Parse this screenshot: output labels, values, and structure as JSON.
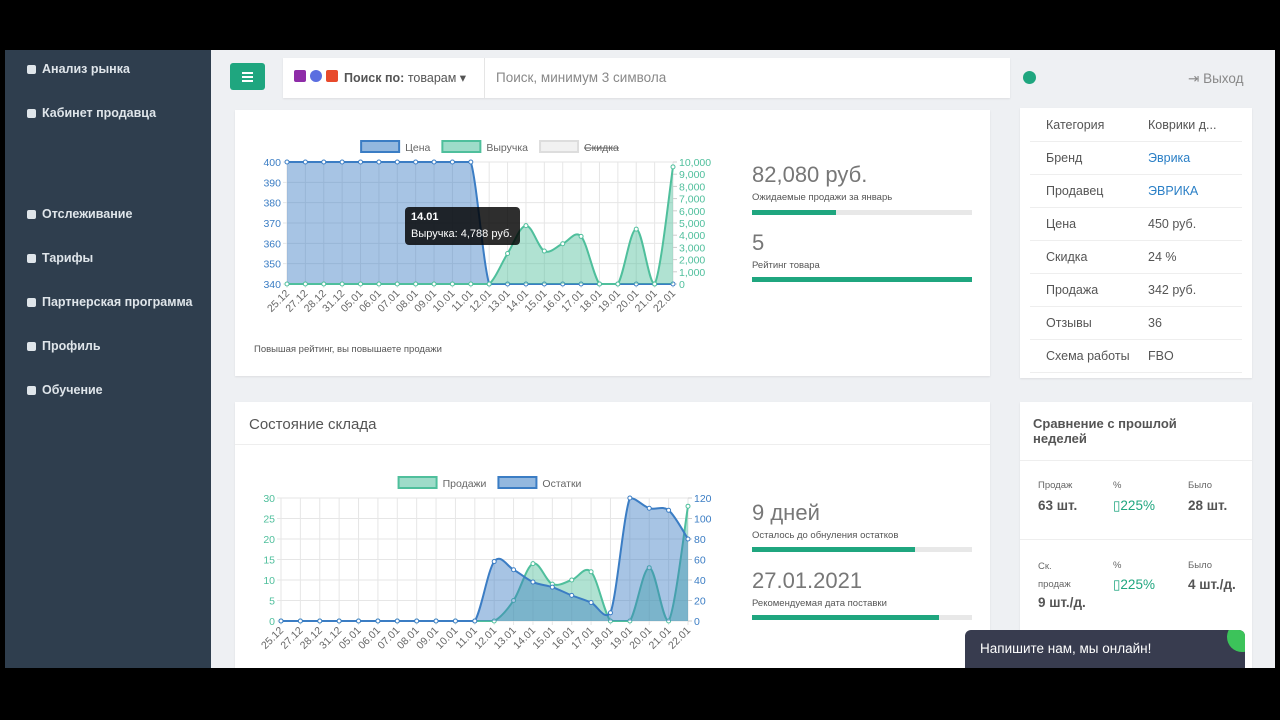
{
  "sidebar": {
    "items": [
      "Анализ рынка",
      "Кабинет продавца",
      "Отслеживание",
      "Тарифы",
      "Партнерская программа",
      "Профиль",
      "Обучение"
    ]
  },
  "topbar": {
    "search_scope_label": "Поиск по:",
    "search_scope": "товарам",
    "search_placeholder": "Поиск, минимум 3 символа",
    "logout": "Выход"
  },
  "sales_chart": {
    "type": "line",
    "categories": [
      "25.12",
      "27.12",
      "28.12",
      "31.12",
      "05.01",
      "06.01",
      "07.01",
      "08.01",
      "09.01",
      "10.01",
      "11.01",
      "12.01",
      "13.01",
      "14.01",
      "15.01",
      "16.01",
      "17.01",
      "18.01",
      "19.01",
      "20.01",
      "21.01",
      "22.01"
    ],
    "ylim": [
      340,
      400
    ],
    "yticks": [
      340,
      350,
      360,
      370,
      380,
      390,
      400
    ],
    "y2lim": [
      0,
      10000
    ],
    "y2ticks": [
      0,
      {
        "value": 1000,
        "label": "1,000"
      },
      {
        "value": 2000,
        "label": "2,000"
      },
      {
        "value": 3000,
        "label": "3,000"
      },
      {
        "value": 4000,
        "label": "4,000"
      },
      {
        "value": 5000,
        "label": "5,000"
      },
      {
        "value": 6000,
        "label": "6,000"
      },
      {
        "value": 7000,
        "label": "7,000"
      },
      {
        "value": 8000,
        "label": "8,000"
      },
      {
        "value": 9000,
        "label": "9,000"
      },
      {
        "value": 10000,
        "label": "10,000"
      }
    ],
    "grid": true,
    "series": [
      {
        "name": "Цена",
        "color": "#3b7dc4",
        "values": [
          400,
          400,
          400,
          400,
          400,
          400,
          400,
          400,
          400,
          400,
          400,
          340,
          340,
          340,
          340,
          340,
          340,
          340,
          340,
          340,
          340,
          340
        ]
      },
      {
        "name": "Выручка",
        "color": "#4fbf9c",
        "axis": "y2",
        "values": [
          0,
          0,
          0,
          0,
          0,
          0,
          0,
          0,
          0,
          0,
          0,
          0,
          2500,
          4788,
          2700,
          3300,
          3900,
          0,
          0,
          4500,
          0,
          9600
        ]
      },
      {
        "name": "Скидка",
        "color": "#dddddd",
        "hidden": true
      }
    ],
    "tooltip": {
      "title": "14.01",
      "text": "Выручка: 4,788 руб."
    },
    "note": "Повышая рейтинг, вы повышаете продажи"
  },
  "sales_stats": [
    {
      "value": "82,080 руб.",
      "label": "Ожидаемые продажи за январь",
      "progress": 38
    },
    {
      "value": "5",
      "label": "Рейтинг товара",
      "progress": 100
    }
  ],
  "product_info": {
    "rows": [
      [
        "Категория",
        "Коврики д..."
      ],
      [
        "Бренд",
        "Эврика"
      ],
      [
        "Продавец",
        "ЭВРИКА"
      ],
      [
        "Цена",
        "450 руб."
      ],
      [
        "Скидка",
        "24 %"
      ],
      [
        "Продажа",
        "342 руб."
      ],
      [
        "Отзывы",
        "36"
      ],
      [
        "Схема работы",
        "FBO"
      ]
    ]
  },
  "stock_panel": {
    "title": "Состояние склада"
  },
  "stock_chart": {
    "type": "line",
    "categories": [
      "25.12",
      "27.12",
      "28.12",
      "31.12",
      "05.01",
      "06.01",
      "07.01",
      "08.01",
      "09.01",
      "10.01",
      "11.01",
      "12.01",
      "13.01",
      "14.01",
      "15.01",
      "16.01",
      "17.01",
      "18.01",
      "19.01",
      "20.01",
      "21.01",
      "22.01"
    ],
    "ylim": [
      0,
      30
    ],
    "yticks": [
      0,
      5,
      10,
      15,
      20,
      25,
      30
    ],
    "y2lim": [
      0,
      120
    ],
    "y2ticks": [
      0,
      20,
      40,
      60,
      80,
      100,
      120
    ],
    "grid": true,
    "series": [
      {
        "name": "Продажи",
        "color": "#4fbf9c",
        "values": [
          0,
          0,
          0,
          0,
          0,
          0,
          0,
          0,
          0,
          0,
          0,
          0,
          5,
          14,
          9,
          10,
          12,
          0,
          0,
          13,
          0,
          28
        ]
      },
      {
        "name": "Остатки",
        "color": "#3b7dc4",
        "axis": "y2",
        "values": [
          0,
          0,
          0,
          0,
          0,
          0,
          0,
          0,
          0,
          0,
          0,
          58,
          50,
          38,
          33,
          25,
          18,
          8,
          120,
          110,
          108,
          80
        ]
      }
    ]
  },
  "stock_stats": [
    {
      "value": "9 дней",
      "label": "Осталось до обнуления остатков",
      "progress": 74
    },
    {
      "value": "27.01.2021",
      "label": "Рекомендуемая дата поставки",
      "progress": 85
    }
  ],
  "comparison": {
    "title": "Сравнение с прошлой неделей",
    "rows": [
      [
        {
          "label": "Продаж",
          "value": "63 шт."
        },
        {
          "label": "%",
          "value": "▯225%"
        },
        {
          "label": "Было",
          "value": "28 шт."
        }
      ],
      [
        {
          "label": "Ск. продаж",
          "value": "9 шт./д."
        },
        {
          "label": "%",
          "value": "▯225%"
        },
        {
          "label": "Было",
          "value": "4 шт./д."
        }
      ]
    ]
  },
  "chat": {
    "text": "Напишите нам, мы онлайн!"
  }
}
